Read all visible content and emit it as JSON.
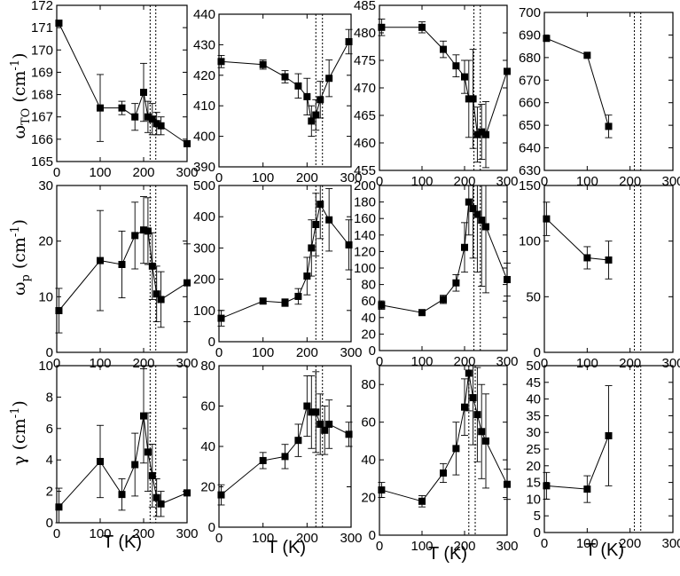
{
  "figure": {
    "row_labels": [
      {
        "sym": "ω",
        "sub": "TO",
        "unit": " (cm",
        "sup": "-1",
        "close": ")"
      },
      {
        "sym": "ω",
        "sub": "p",
        "unit": " (cm",
        "sup": "-1",
        "close": ")"
      },
      {
        "sym": "γ",
        "sub": "",
        "unit": " (cm",
        "sup": "-1",
        "close": ")"
      }
    ],
    "xlabel": "T (K)",
    "colors": {
      "line": "#000000",
      "marker": "#000000"
    }
  },
  "chart_data": [
    {
      "type": "scatter",
      "row": 0,
      "col": 0,
      "xlim": [
        0,
        300
      ],
      "ylim": [
        165,
        172
      ],
      "xticks": [
        0,
        100,
        200,
        300
      ],
      "yticks": [
        165,
        166,
        167,
        168,
        169,
        170,
        171,
        172
      ],
      "vlines": [
        215,
        228
      ],
      "points": [
        {
          "x": 5,
          "y": 171.2,
          "err": 0
        },
        {
          "x": 100,
          "y": 167.4,
          "err": 1.5
        },
        {
          "x": 150,
          "y": 167.4,
          "err": 0.3
        },
        {
          "x": 180,
          "y": 167.0,
          "err": 0.6
        },
        {
          "x": 200,
          "y": 168.1,
          "err": 1.3
        },
        {
          "x": 210,
          "y": 167.0,
          "err": 0.7
        },
        {
          "x": 220,
          "y": 166.9,
          "err": 0.7
        },
        {
          "x": 230,
          "y": 166.7,
          "err": 0.5
        },
        {
          "x": 240,
          "y": 166.6,
          "err": 0.4
        },
        {
          "x": 300,
          "y": 165.8,
          "err": 0
        }
      ]
    },
    {
      "type": "scatter",
      "row": 0,
      "col": 1,
      "xlim": [
        0,
        300
      ],
      "ylim": [
        390,
        440
      ],
      "xticks": [
        0,
        100,
        200,
        300
      ],
      "yticks": [
        390,
        400,
        410,
        420,
        430,
        440
      ],
      "vlines": [
        220,
        235
      ],
      "points": [
        {
          "x": 5,
          "y": 424.5,
          "err": 2
        },
        {
          "x": 100,
          "y": 423.5,
          "err": 1.5
        },
        {
          "x": 150,
          "y": 419.5,
          "err": 2
        },
        {
          "x": 180,
          "y": 416.5,
          "err": 4
        },
        {
          "x": 200,
          "y": 413,
          "err": 6
        },
        {
          "x": 210,
          "y": 405,
          "err": 5
        },
        {
          "x": 220,
          "y": 407,
          "err": 5
        },
        {
          "x": 230,
          "y": 412,
          "err": 6
        },
        {
          "x": 250,
          "y": 419,
          "err": 6
        },
        {
          "x": 295,
          "y": 431,
          "err": 4
        }
      ]
    },
    {
      "type": "scatter",
      "row": 0,
      "col": 2,
      "xlim": [
        0,
        300
      ],
      "ylim": [
        455,
        485
      ],
      "xticks": [
        0,
        100,
        200,
        300
      ],
      "yticks": [
        455,
        460,
        465,
        470,
        475,
        480,
        485
      ],
      "vlines": [
        222,
        237
      ],
      "points": [
        {
          "x": 5,
          "y": 481,
          "err": 1.5
        },
        {
          "x": 100,
          "y": 481,
          "err": 1
        },
        {
          "x": 150,
          "y": 477,
          "err": 1.5
        },
        {
          "x": 180,
          "y": 474,
          "err": 2
        },
        {
          "x": 200,
          "y": 472,
          "err": 3
        },
        {
          "x": 210,
          "y": 468,
          "err": 7
        },
        {
          "x": 220,
          "y": 468,
          "err": 9
        },
        {
          "x": 230,
          "y": 461.5,
          "err": 5
        },
        {
          "x": 240,
          "y": 462,
          "err": 5
        },
        {
          "x": 250,
          "y": 461.5,
          "err": 6
        },
        {
          "x": 300,
          "y": 473,
          "err": 0
        }
      ]
    },
    {
      "type": "scatter",
      "row": 0,
      "col": 3,
      "xlim": [
        0,
        300
      ],
      "ylim": [
        630,
        700
      ],
      "xticks": [
        0,
        100,
        200,
        300
      ],
      "yticks": [
        630,
        640,
        650,
        660,
        670,
        680,
        690,
        700
      ],
      "vlines": [
        210,
        225
      ],
      "points": [
        {
          "x": 5,
          "y": 688.5,
          "err": 0
        },
        {
          "x": 100,
          "y": 681,
          "err": 0
        },
        {
          "x": 150,
          "y": 649.5,
          "err": 5
        }
      ]
    },
    {
      "type": "scatter",
      "row": 1,
      "col": 0,
      "xlim": [
        0,
        300
      ],
      "ylim": [
        0,
        30
      ],
      "xticks": [
        0,
        100,
        200,
        300
      ],
      "yticks": [
        0,
        10,
        20,
        30
      ],
      "vlines": [
        215,
        228
      ],
      "points": [
        {
          "x": 5,
          "y": 7.5,
          "err": 4
        },
        {
          "x": 100,
          "y": 16.5,
          "err": 9
        },
        {
          "x": 150,
          "y": 15.8,
          "err": 6
        },
        {
          "x": 180,
          "y": 21,
          "err": 6
        },
        {
          "x": 200,
          "y": 22,
          "err": 6
        },
        {
          "x": 210,
          "y": 21.8,
          "err": 6
        },
        {
          "x": 220,
          "y": 15.5,
          "err": 6
        },
        {
          "x": 230,
          "y": 10.5,
          "err": 5
        },
        {
          "x": 240,
          "y": 9.5,
          "err": 5
        },
        {
          "x": 300,
          "y": 12.5,
          "err": 7
        }
      ]
    },
    {
      "type": "scatter",
      "row": 1,
      "col": 1,
      "xlim": [
        0,
        300
      ],
      "ylim": [
        0,
        500
      ],
      "xticks": [
        0,
        100,
        200,
        300
      ],
      "yticks": [
        0,
        100,
        200,
        300,
        400,
        500
      ],
      "vlines": [
        220,
        235
      ],
      "points": [
        {
          "x": 5,
          "y": 75,
          "err": 25
        },
        {
          "x": 100,
          "y": 130,
          "err": 8
        },
        {
          "x": 150,
          "y": 125,
          "err": 12
        },
        {
          "x": 180,
          "y": 145,
          "err": 25
        },
        {
          "x": 200,
          "y": 210,
          "err": 60
        },
        {
          "x": 210,
          "y": 300,
          "err": 90
        },
        {
          "x": 220,
          "y": 375,
          "err": 100
        },
        {
          "x": 230,
          "y": 440,
          "err": 110
        },
        {
          "x": 250,
          "y": 390,
          "err": 100
        },
        {
          "x": 295,
          "y": 310,
          "err": 80
        }
      ]
    },
    {
      "type": "scatter",
      "row": 1,
      "col": 2,
      "xlim": [
        0,
        300
      ],
      "ylim": [
        0,
        200
      ],
      "xticks": [
        0,
        100,
        200,
        300
      ],
      "yticks": [
        0,
        20,
        40,
        60,
        80,
        100,
        120,
        140,
        160,
        180,
        200
      ],
      "vlines": [
        222,
        237
      ],
      "points": [
        {
          "x": 5,
          "y": 55,
          "err": 5
        },
        {
          "x": 100,
          "y": 46,
          "err": 3
        },
        {
          "x": 150,
          "y": 62,
          "err": 5
        },
        {
          "x": 180,
          "y": 82,
          "err": 10
        },
        {
          "x": 200,
          "y": 125,
          "err": 30
        },
        {
          "x": 210,
          "y": 180,
          "err": 40
        },
        {
          "x": 220,
          "y": 172,
          "err": 60
        },
        {
          "x": 230,
          "y": 165,
          "err": 70
        },
        {
          "x": 240,
          "y": 158,
          "err": 80
        },
        {
          "x": 250,
          "y": 150,
          "err": 80
        },
        {
          "x": 300,
          "y": 86,
          "err": 20
        }
      ]
    },
    {
      "type": "scatter",
      "row": 1,
      "col": 3,
      "xlim": [
        0,
        300
      ],
      "ylim": [
        0,
        150
      ],
      "xticks": [
        0,
        100,
        200,
        300
      ],
      "yticks": [
        0,
        50,
        100,
        150
      ],
      "vlines": [
        210,
        225
      ],
      "points": [
        {
          "x": 5,
          "y": 120,
          "err": 15
        },
        {
          "x": 100,
          "y": 85,
          "err": 10
        },
        {
          "x": 150,
          "y": 83,
          "err": 17
        }
      ]
    },
    {
      "type": "scatter",
      "row": 2,
      "col": 0,
      "xlim": [
        0,
        300
      ],
      "ylim": [
        0,
        10
      ],
      "xticks": [
        0,
        100,
        200,
        300
      ],
      "yticks": [
        0,
        2,
        4,
        6,
        8,
        10
      ],
      "vlines": [
        215,
        228
      ],
      "points": [
        {
          "x": 5,
          "y": 1.0,
          "err": 1.2
        },
        {
          "x": 100,
          "y": 3.9,
          "err": 2.3
        },
        {
          "x": 150,
          "y": 1.8,
          "err": 1
        },
        {
          "x": 180,
          "y": 3.7,
          "err": 2
        },
        {
          "x": 200,
          "y": 6.8,
          "err": 3
        },
        {
          "x": 210,
          "y": 4.5,
          "err": 2.5
        },
        {
          "x": 220,
          "y": 3.0,
          "err": 2
        },
        {
          "x": 230,
          "y": 1.6,
          "err": 1.2
        },
        {
          "x": 240,
          "y": 1.2,
          "err": 0.8
        },
        {
          "x": 300,
          "y": 1.9,
          "err": 0
        }
      ]
    },
    {
      "type": "scatter",
      "row": 2,
      "col": 1,
      "xlim": [
        0,
        300
      ],
      "ylim": [
        0,
        80
      ],
      "xticks": [
        0,
        100,
        200,
        300
      ],
      "yticks": [
        0,
        20,
        40,
        60,
        80
      ],
      "vlines": [
        220,
        235
      ],
      "points": [
        {
          "x": 5,
          "y": 16,
          "err": 5
        },
        {
          "x": 100,
          "y": 33,
          "err": 4
        },
        {
          "x": 150,
          "y": 35,
          "err": 6
        },
        {
          "x": 180,
          "y": 43,
          "err": 8
        },
        {
          "x": 200,
          "y": 60,
          "err": 15
        },
        {
          "x": 210,
          "y": 57,
          "err": 18
        },
        {
          "x": 220,
          "y": 57,
          "err": 20
        },
        {
          "x": 230,
          "y": 51,
          "err": 15
        },
        {
          "x": 240,
          "y": 48,
          "err": 12
        },
        {
          "x": 250,
          "y": 51,
          "err": 12
        },
        {
          "x": 295,
          "y": 46,
          "err": 6
        }
      ]
    },
    {
      "type": "scatter",
      "row": 2,
      "col": 2,
      "xlim": [
        0,
        300
      ],
      "ylim": [
        0,
        90
      ],
      "xticks": [
        0,
        100,
        200,
        300
      ],
      "yticks": [
        0,
        20,
        40,
        60,
        80
      ],
      "vlines": [
        210,
        225
      ],
      "points": [
        {
          "x": 5,
          "y": 24,
          "err": 4
        },
        {
          "x": 100,
          "y": 18,
          "err": 3
        },
        {
          "x": 150,
          "y": 33,
          "err": 5
        },
        {
          "x": 180,
          "y": 46,
          "err": 14
        },
        {
          "x": 200,
          "y": 68,
          "err": 15
        },
        {
          "x": 210,
          "y": 86,
          "err": 20
        },
        {
          "x": 220,
          "y": 73,
          "err": 25
        },
        {
          "x": 230,
          "y": 64,
          "err": 25
        },
        {
          "x": 240,
          "y": 55,
          "err": 25
        },
        {
          "x": 250,
          "y": 50,
          "err": 25
        },
        {
          "x": 300,
          "y": 27,
          "err": 8
        }
      ]
    },
    {
      "type": "scatter",
      "row": 2,
      "col": 3,
      "xlim": [
        0,
        300
      ],
      "ylim": [
        0,
        50
      ],
      "xticks": [
        0,
        100,
        200,
        300
      ],
      "yticks": [
        0,
        5,
        10,
        15,
        20,
        25,
        30,
        35,
        40,
        45,
        50
      ],
      "vlines": [
        210,
        225
      ],
      "points": [
        {
          "x": 5,
          "y": 14,
          "err": 4
        },
        {
          "x": 100,
          "y": 13,
          "err": 4
        },
        {
          "x": 150,
          "y": 29,
          "err": 15
        }
      ]
    }
  ]
}
